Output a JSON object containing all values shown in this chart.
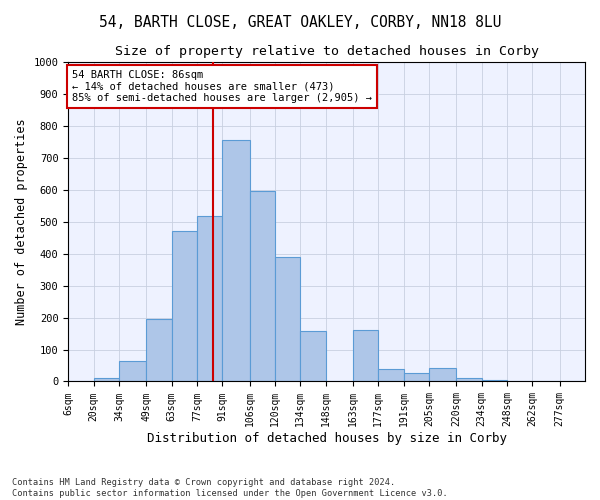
{
  "title1": "54, BARTH CLOSE, GREAT OAKLEY, CORBY, NN18 8LU",
  "title2": "Size of property relative to detached houses in Corby",
  "xlabel": "Distribution of detached houses by size in Corby",
  "ylabel": "Number of detached properties",
  "footnote1": "Contains HM Land Registry data © Crown copyright and database right 2024.",
  "footnote2": "Contains public sector information licensed under the Open Government Licence v3.0.",
  "annotation_line1": "54 BARTH CLOSE: 86sqm",
  "annotation_line2": "← 14% of detached houses are smaller (473)",
  "annotation_line3": "85% of semi-detached houses are larger (2,905) →",
  "bar_color": "#aec6e8",
  "bar_edge_color": "#5b9bd5",
  "vline_color": "#cc0000",
  "vline_x": 86,
  "bin_edges": [
    6,
    20,
    34,
    49,
    63,
    77,
    91,
    106,
    120,
    134,
    148,
    163,
    177,
    191,
    205,
    220,
    234,
    248,
    262,
    277,
    291
  ],
  "bar_heights": [
    0,
    12,
    65,
    197,
    470,
    517,
    755,
    595,
    390,
    159,
    0,
    160,
    40,
    27,
    42,
    12,
    6,
    0,
    0,
    0
  ],
  "ylim": [
    0,
    1000
  ],
  "yticks": [
    0,
    100,
    200,
    300,
    400,
    500,
    600,
    700,
    800,
    900,
    1000
  ],
  "grid_color": "#c8d0e0",
  "bg_color": "#eef2ff",
  "box_color": "#cc0000",
  "title_fontsize": 10.5,
  "subtitle_fontsize": 9.5,
  "tick_fontsize": 7,
  "ylabel_fontsize": 8.5,
  "xlabel_fontsize": 9
}
